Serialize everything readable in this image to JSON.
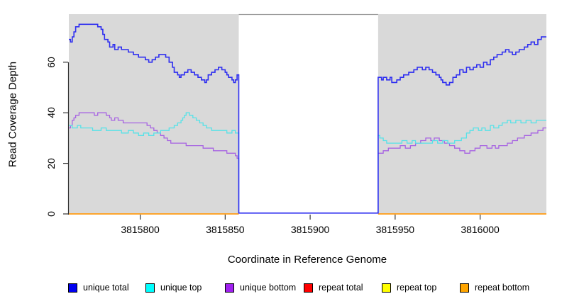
{
  "legend": {
    "items": [
      {
        "label": "unique total",
        "color": "#0000F0"
      },
      {
        "label": "unique top",
        "color": "#00FFFF"
      },
      {
        "label": "unique bottom",
        "color": "#A020F0"
      },
      {
        "label": "repeat total",
        "color": "#FF0000"
      },
      {
        "label": "repeat top",
        "color": "#FFFF00"
      },
      {
        "label": "repeat bottom",
        "color": "#FFA500"
      }
    ]
  },
  "chart_data": {
    "type": "line",
    "title": "",
    "xlabel": "Coordinate in Reference Genome",
    "ylabel": "Read Coverage Depth",
    "plot_background": "#D9D9D9",
    "masked_region": {
      "start": 3815858,
      "end": 3815940,
      "fill": "#FFFFFF",
      "border": "#999999"
    },
    "xlim": [
      3815758,
      3816039
    ],
    "ylim": [
      0,
      79
    ],
    "x_ticks": [
      3815800,
      3815850,
      3815900,
      3815950,
      3816000
    ],
    "x_tick_labels": [
      "3815800",
      "3815850",
      "3815900",
      "3815950",
      "3816000"
    ],
    "y_ticks": [
      0,
      20,
      40,
      60
    ],
    "y_tick_labels": [
      "0",
      "20",
      "40",
      "60"
    ],
    "grid": false,
    "legend_position": "bottom",
    "series": [
      {
        "name": "repeat total",
        "color": "#E00000",
        "width": 1.3,
        "z": 1,
        "segments": [
          [
            [
              3815758,
              0
            ],
            [
              3815858,
              0
            ]
          ],
          [
            [
              3815940,
              0
            ],
            [
              3816039,
              0
            ]
          ]
        ]
      },
      {
        "name": "repeat top",
        "color": "#FFFF00",
        "width": 1.3,
        "z": 2,
        "segments": [
          [
            [
              3815758,
              0
            ],
            [
              3815858,
              0
            ]
          ],
          [
            [
              3815940,
              0
            ],
            [
              3816039,
              0
            ]
          ]
        ]
      },
      {
        "name": "repeat bottom",
        "color": "#FFA020",
        "width": 1.7,
        "z": 3,
        "segments": [
          [
            [
              3815758,
              0
            ],
            [
              3815858,
              0
            ]
          ],
          [
            [
              3815940,
              0
            ],
            [
              3816039,
              0
            ]
          ]
        ]
      },
      {
        "name": "unique bottom",
        "color": "#A763E2",
        "width": 1.3,
        "z": 11,
        "segments": [
          [
            [
              3815758,
              34
            ],
            [
              3815759,
              35
            ],
            [
              3815760,
              37
            ],
            [
              3815761,
              38
            ],
            [
              3815762,
              39
            ],
            [
              3815764,
              40
            ],
            [
              3815771,
              40
            ],
            [
              3815773,
              39
            ],
            [
              3815775,
              40
            ],
            [
              3815778,
              40
            ],
            [
              3815780,
              39
            ],
            [
              3815782,
              38
            ],
            [
              3815783,
              37
            ],
            [
              3815785,
              38
            ],
            [
              3815787,
              37
            ],
            [
              3815790,
              36
            ],
            [
              3815800,
              36
            ],
            [
              3815804,
              35
            ],
            [
              3815806,
              34
            ],
            [
              3815808,
              33
            ],
            [
              3815810,
              32
            ],
            [
              3815812,
              31
            ],
            [
              3815814,
              30
            ],
            [
              3815816,
              29
            ],
            [
              3815818,
              28
            ],
            [
              3815823,
              28
            ],
            [
              3815827,
              27
            ],
            [
              3815833,
              27
            ],
            [
              3815837,
              26
            ],
            [
              3815841,
              26
            ],
            [
              3815843,
              25
            ],
            [
              3815848,
              25
            ],
            [
              3815851,
              24
            ],
            [
              3815854,
              24
            ],
            [
              3815856,
              23
            ],
            [
              3815857,
              22
            ],
            [
              3815858,
              0
            ],
            [
              3815940,
              24
            ],
            [
              3815943,
              25
            ],
            [
              3815946,
              26
            ],
            [
              3815951,
              26
            ],
            [
              3815953,
              27
            ],
            [
              3815956,
              26
            ],
            [
              3815959,
              27
            ],
            [
              3815962,
              28
            ],
            [
              3815965,
              29
            ],
            [
              3815968,
              30
            ],
            [
              3815971,
              29
            ],
            [
              3815973,
              30
            ],
            [
              3815976,
              29
            ],
            [
              3815979,
              28
            ],
            [
              3815982,
              27
            ],
            [
              3815985,
              26
            ],
            [
              3815988,
              25
            ],
            [
              3815991,
              24
            ],
            [
              3815994,
              25
            ],
            [
              3815997,
              26
            ],
            [
              3816000,
              27
            ],
            [
              3816004,
              26
            ],
            [
              3816007,
              27
            ],
            [
              3816009,
              26
            ],
            [
              3816011,
              27
            ],
            [
              3816016,
              28
            ],
            [
              3816019,
              29
            ],
            [
              3816022,
              30
            ],
            [
              3816026,
              31
            ],
            [
              3816030,
              32
            ],
            [
              3816034,
              33
            ],
            [
              3816037,
              34
            ],
            [
              3816039,
              34
            ]
          ]
        ]
      },
      {
        "name": "unique top",
        "color": "#55E2E8",
        "width": 1.3,
        "z": 12,
        "segments": [
          [
            [
              3815758,
              35
            ],
            [
              3815760,
              34
            ],
            [
              3815763,
              35
            ],
            [
              3815765,
              34
            ],
            [
              3815772,
              33
            ],
            [
              3815777,
              34
            ],
            [
              3815780,
              33
            ],
            [
              3815786,
              33
            ],
            [
              3815789,
              32
            ],
            [
              3815793,
              33
            ],
            [
              3815796,
              32
            ],
            [
              3815799,
              31
            ],
            [
              3815802,
              32
            ],
            [
              3815805,
              31
            ],
            [
              3815808,
              32
            ],
            [
              3815812,
              33
            ],
            [
              3815817,
              34
            ],
            [
              3815820,
              35
            ],
            [
              3815822,
              36
            ],
            [
              3815824,
              37
            ],
            [
              3815825,
              38
            ],
            [
              3815826,
              39
            ],
            [
              3815827,
              40
            ],
            [
              3815829,
              39
            ],
            [
              3815831,
              38
            ],
            [
              3815833,
              37
            ],
            [
              3815835,
              36
            ],
            [
              3815837,
              35
            ],
            [
              3815839,
              34
            ],
            [
              3815842,
              33
            ],
            [
              3815848,
              33
            ],
            [
              3815851,
              32
            ],
            [
              3815854,
              33
            ],
            [
              3815856,
              32
            ],
            [
              3815858,
              0
            ],
            [
              3815940,
              31
            ],
            [
              3815941,
              30
            ],
            [
              3815943,
              29
            ],
            [
              3815945,
              28
            ],
            [
              3815952,
              28
            ],
            [
              3815954,
              29
            ],
            [
              3815957,
              28
            ],
            [
              3815960,
              29
            ],
            [
              3815962,
              28
            ],
            [
              3815969,
              28
            ],
            [
              3815972,
              29
            ],
            [
              3815975,
              28
            ],
            [
              3815978,
              29
            ],
            [
              3815981,
              28
            ],
            [
              3815985,
              29
            ],
            [
              3815989,
              30
            ],
            [
              3815992,
              32
            ],
            [
              3815994,
              33
            ],
            [
              3815996,
              34
            ],
            [
              3815999,
              33
            ],
            [
              3816001,
              34
            ],
            [
              3816003,
              33
            ],
            [
              3816006,
              35
            ],
            [
              3816008,
              34
            ],
            [
              3816011,
              35
            ],
            [
              3816013,
              36
            ],
            [
              3816016,
              37
            ],
            [
              3816018,
              36
            ],
            [
              3816021,
              37
            ],
            [
              3816024,
              36
            ],
            [
              3816027,
              37
            ],
            [
              3816030,
              36
            ],
            [
              3816033,
              37
            ],
            [
              3816039,
              37
            ]
          ]
        ]
      },
      {
        "name": "unique total",
        "color": "#2E2EF0",
        "width": 1.6,
        "z": 13,
        "segments": [
          [
            [
              3815758,
              69
            ],
            [
              3815759,
              68
            ],
            [
              3815760,
              70
            ],
            [
              3815761,
              72
            ],
            [
              3815762,
              74
            ],
            [
              3815764,
              75
            ],
            [
              3815773,
              75
            ],
            [
              3815775,
              74
            ],
            [
              3815777,
              73
            ],
            [
              3815778,
              71
            ],
            [
              3815779,
              69
            ],
            [
              3815781,
              68
            ],
            [
              3815782,
              66
            ],
            [
              3815784,
              67
            ],
            [
              3815785,
              65
            ],
            [
              3815787,
              66
            ],
            [
              3815789,
              65
            ],
            [
              3815793,
              64
            ],
            [
              3815796,
              63
            ],
            [
              3815799,
              62
            ],
            [
              3815803,
              61
            ],
            [
              3815805,
              60
            ],
            [
              3815807,
              61
            ],
            [
              3815809,
              62
            ],
            [
              3815811,
              63
            ],
            [
              3815815,
              62
            ],
            [
              3815817,
              60
            ],
            [
              3815819,
              58
            ],
            [
              3815820,
              56
            ],
            [
              3815822,
              55
            ],
            [
              3815823,
              54
            ],
            [
              3815824,
              55
            ],
            [
              3815826,
              56
            ],
            [
              3815828,
              57
            ],
            [
              3815830,
              56
            ],
            [
              3815832,
              55
            ],
            [
              3815834,
              54
            ],
            [
              3815836,
              53
            ],
            [
              3815838,
              52
            ],
            [
              3815839,
              53
            ],
            [
              3815840,
              55
            ],
            [
              3815842,
              56
            ],
            [
              3815844,
              57
            ],
            [
              3815846,
              58
            ],
            [
              3815848,
              57
            ],
            [
              3815850,
              56
            ],
            [
              3815851,
              55
            ],
            [
              3815852,
              54
            ],
            [
              3815854,
              53
            ],
            [
              3815855,
              52
            ],
            [
              3815856,
              53
            ],
            [
              3815857,
              55
            ],
            [
              3815858,
              0
            ],
            [
              3815940,
              54
            ],
            [
              3815942,
              53
            ],
            [
              3815943,
              54
            ],
            [
              3815945,
              53
            ],
            [
              3815947,
              54
            ],
            [
              3815948,
              52
            ],
            [
              3815951,
              53
            ],
            [
              3815953,
              54
            ],
            [
              3815955,
              55
            ],
            [
              3815958,
              56
            ],
            [
              3815961,
              57
            ],
            [
              3815963,
              58
            ],
            [
              3815966,
              57
            ],
            [
              3815968,
              58
            ],
            [
              3815970,
              57
            ],
            [
              3815972,
              56
            ],
            [
              3815974,
              55
            ],
            [
              3815976,
              54
            ],
            [
              3815977,
              53
            ],
            [
              3815978,
              52
            ],
            [
              3815980,
              51
            ],
            [
              3815982,
              52
            ],
            [
              3815984,
              54
            ],
            [
              3815986,
              55
            ],
            [
              3815988,
              57
            ],
            [
              3815990,
              56
            ],
            [
              3815992,
              58
            ],
            [
              3815994,
              57
            ],
            [
              3815996,
              58
            ],
            [
              3815998,
              59
            ],
            [
              3816000,
              58
            ],
            [
              3816002,
              60
            ],
            [
              3816004,
              59
            ],
            [
              3816006,
              61
            ],
            [
              3816008,
              62
            ],
            [
              3816010,
              63
            ],
            [
              3816013,
              64
            ],
            [
              3816015,
              65
            ],
            [
              3816017,
              64
            ],
            [
              3816019,
              63
            ],
            [
              3816021,
              64
            ],
            [
              3816023,
              65
            ],
            [
              3816026,
              66
            ],
            [
              3816028,
              67
            ],
            [
              3816030,
              68
            ],
            [
              3816032,
              67
            ],
            [
              3816034,
              69
            ],
            [
              3816036,
              70
            ],
            [
              3816039,
              70
            ]
          ]
        ]
      }
    ]
  }
}
